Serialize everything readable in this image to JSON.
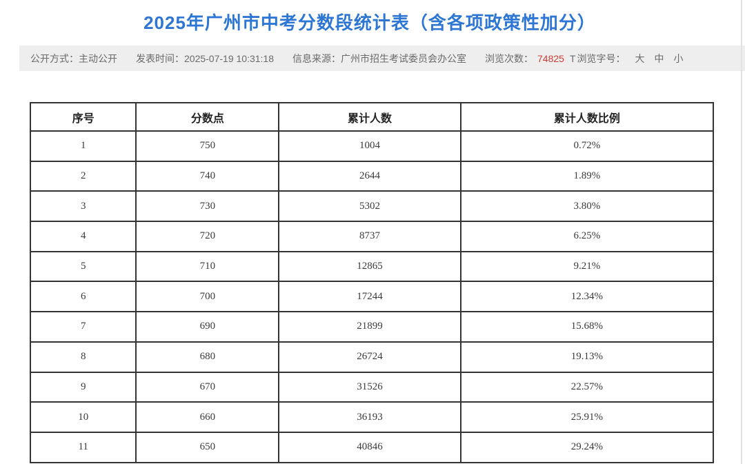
{
  "page": {
    "title": "2025年广州市中考分数段统计表（含各项政策性加分）"
  },
  "meta": {
    "publish_method_label": "公开方式：",
    "publish_method": "主动公开",
    "publish_time_label": "发表时间：",
    "publish_time": "2025-07-19 10:31:18",
    "source_label": "信息来源：",
    "source": "广州市招生考试委员会办公室",
    "views_label": "浏览次数：",
    "views_count": "74825",
    "fontsize_icon": "T",
    "fontsize_label": "浏览字号：",
    "font_sizes": [
      "大",
      "中",
      "小"
    ]
  },
  "colors": {
    "title_blue": "#2e76d4",
    "views_red": "#cf3b32",
    "meta_bar_bg": "#eeeeee",
    "meta_text_gray": "#6a6a6a",
    "table_border": "#333333"
  },
  "chart_data": {
    "type": "table",
    "title": "2025年广州市中考分数段统计表（含各项政策性加分）",
    "columns": [
      "序号",
      "分数点",
      "累计人数",
      "累计人数比例"
    ],
    "rows": [
      [
        "1",
        "750",
        "1004",
        "0.72%"
      ],
      [
        "2",
        "740",
        "2644",
        "1.89%"
      ],
      [
        "3",
        "730",
        "5302",
        "3.80%"
      ],
      [
        "4",
        "720",
        "8737",
        "6.25%"
      ],
      [
        "5",
        "710",
        "12865",
        "9.21%"
      ],
      [
        "6",
        "700",
        "17244",
        "12.34%"
      ],
      [
        "7",
        "690",
        "21899",
        "15.68%"
      ],
      [
        "8",
        "680",
        "26724",
        "19.13%"
      ],
      [
        "9",
        "670",
        "31526",
        "22.57%"
      ],
      [
        "10",
        "660",
        "36193",
        "25.91%"
      ],
      [
        "11",
        "650",
        "40846",
        "29.24%"
      ]
    ]
  }
}
